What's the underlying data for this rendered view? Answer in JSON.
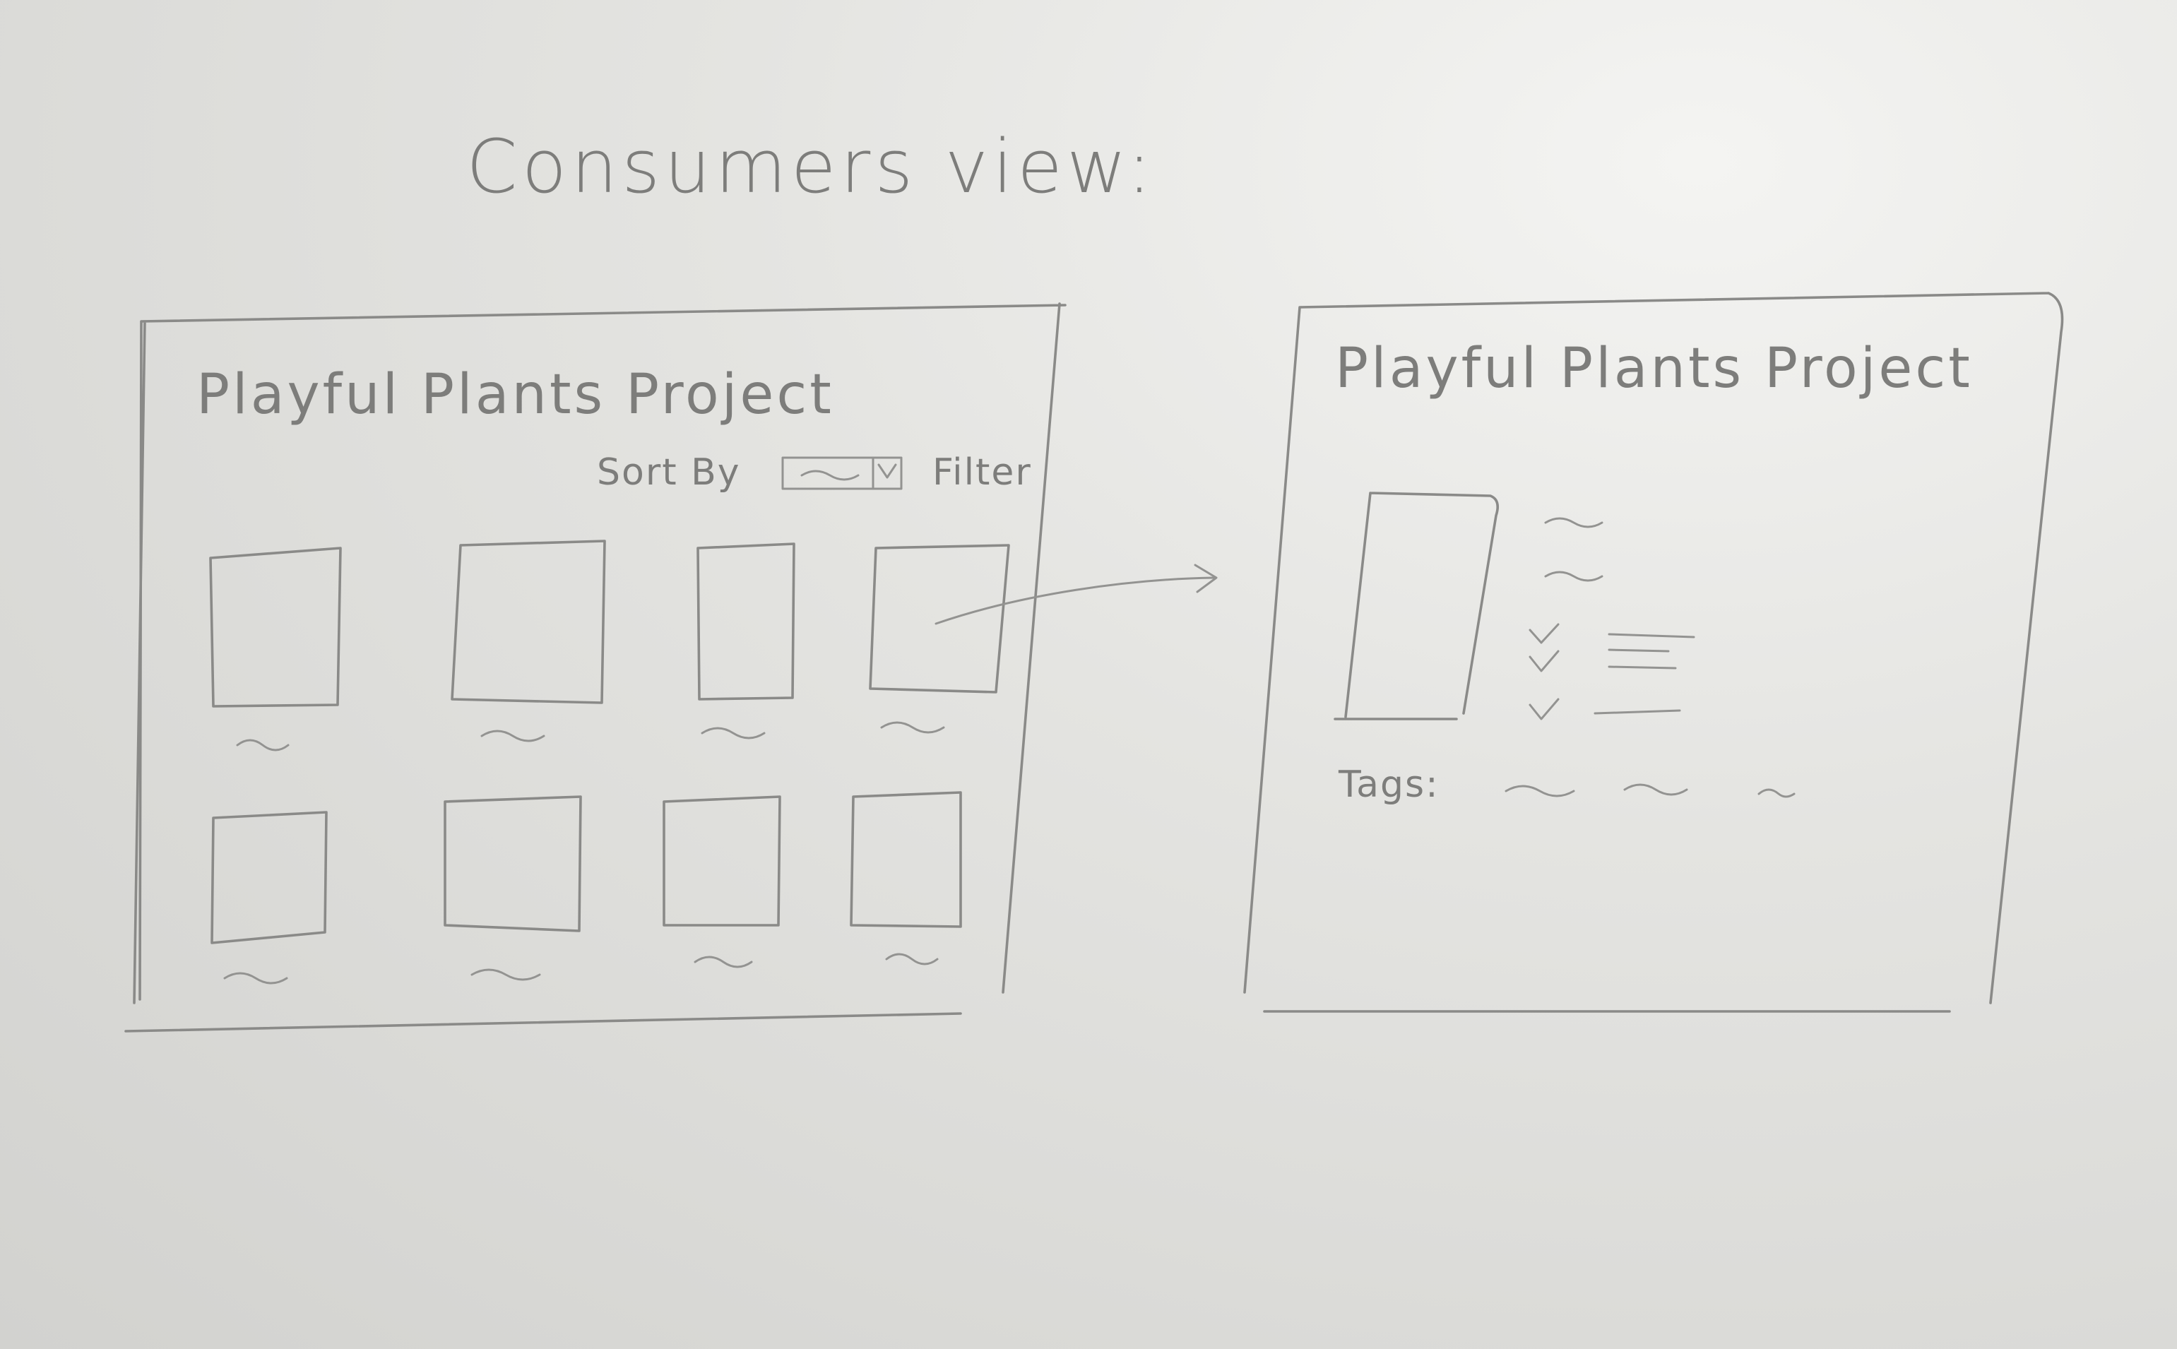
{
  "page": {
    "heading": "Consumers view:"
  },
  "list_screen": {
    "title": "Playful Plants Project",
    "sort_label": "Sort By",
    "filter_label": "Filter"
  },
  "detail_screen": {
    "title": "Playful Plants Project",
    "tags_label": "Tags:"
  }
}
